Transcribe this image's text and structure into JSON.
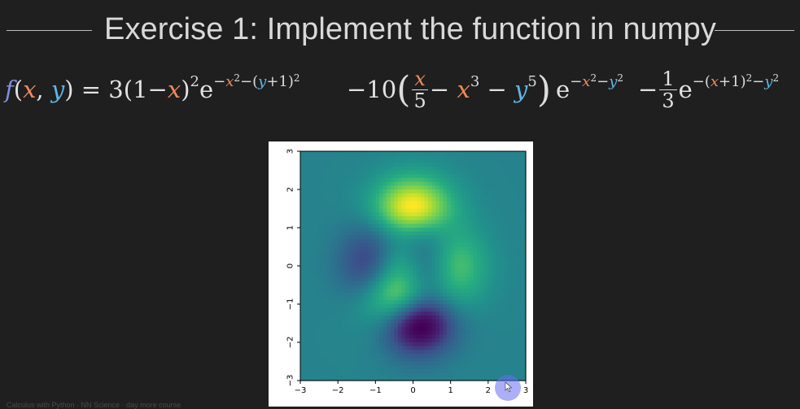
{
  "slide": {
    "title": "Exercise 1: Implement the function in numpy",
    "footer": "Calculus with Python · NN Science · day more course"
  },
  "formula": {
    "lhs_f": "f",
    "lhs_open": "(",
    "lhs_x": "x",
    "lhs_comma": ", ",
    "lhs_y": "y",
    "lhs_close": ") = 3(1−",
    "t1_x": "x",
    "t1_close": ")",
    "t1_sq": "2",
    "t1_e": "e",
    "t1_exp_a": "−",
    "t1_exp_x": "x",
    "t1_exp_b": "−(",
    "t1_exp_y": "y",
    "t1_exp_c": "+1)",
    "t2_coef": "−10",
    "frac1_num": "x",
    "frac1_den": "5",
    "t2_minus1": " − ",
    "t2_x": "x",
    "t2_x_pow": "3",
    "t2_minus2": " − ",
    "t2_y": "y",
    "t2_y_pow": "5",
    "t2_e": "e",
    "t2_exp_a": "−",
    "t2_exp_x": "x",
    "t2_exp_b": "−",
    "t2_exp_y": "y",
    "t3_minus": "−",
    "frac2_num": "1",
    "frac2_den": "3",
    "t3_e": "e",
    "t3_exp_a": "−(",
    "t3_exp_x": "x",
    "t3_exp_b": "+1)",
    "t3_exp_c": "−",
    "t3_exp_y": "y",
    "sq": "2"
  },
  "chart_data": {
    "type": "heatmap",
    "title": "",
    "xlabel": "",
    "ylabel": "",
    "xlim": [
      -3,
      3
    ],
    "ylim": [
      -3,
      3
    ],
    "xticks": [
      "−3",
      "−2",
      "−1",
      "0",
      "1",
      "2",
      "3"
    ],
    "yticks": [
      "3",
      "2",
      "1",
      "0",
      "−1",
      "−2",
      "−3"
    ],
    "colormap": "viridis",
    "function": "f(x,y) = 3(1−x)^2 e^{−x^2−(y+1)^2} − 10(x/5 − x^3 − y^5) e^{−x^2−y^2} − (1/3) e^{−(x+1)^2−y^2}",
    "grid_resolution": 60
  },
  "colors": {
    "background": "#1f1f1f",
    "title": "#d9d9d9",
    "var_f": "#7f8fe0",
    "var_x": "#f08a5d",
    "var_y": "#5fb7e6"
  },
  "icons": {
    "cursor": "mouse-pointer-icon"
  }
}
